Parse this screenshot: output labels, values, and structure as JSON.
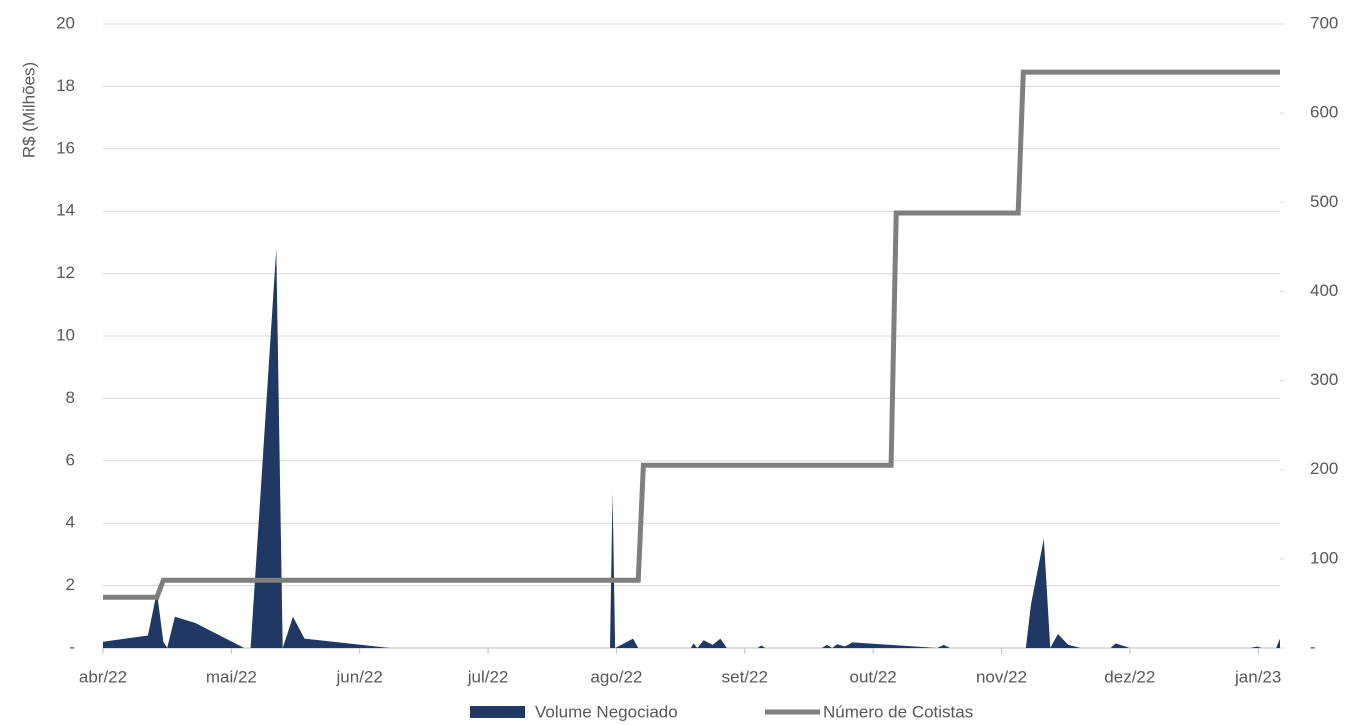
{
  "chart_data": {
    "type": "area-line",
    "y_label": "R$ (Milhões)",
    "xlim": [
      0,
      9.17
    ],
    "xticks": [
      {
        "value": 0,
        "label": "abr/22"
      },
      {
        "value": 1,
        "label": "mai/22"
      },
      {
        "value": 2,
        "label": "jun/22"
      },
      {
        "value": 3,
        "label": "jul/22"
      },
      {
        "value": 4,
        "label": "ago/22"
      },
      {
        "value": 5,
        "label": "set/22"
      },
      {
        "value": 6,
        "label": "out/22"
      },
      {
        "value": 7,
        "label": "nov/22"
      },
      {
        "value": 8,
        "label": "dez/22"
      },
      {
        "value": 9,
        "label": "jan/23"
      }
    ],
    "ylim": [
      0,
      20
    ],
    "yticks": [
      {
        "value": 0,
        "label": "-"
      },
      2,
      4,
      6,
      8,
      10,
      12,
      14,
      16,
      18,
      20
    ],
    "y2lim": [
      0,
      700
    ],
    "y2ticks": [
      {
        "value": 0,
        "label": "-"
      },
      100,
      200,
      300,
      400,
      500,
      600,
      700
    ],
    "grid": true,
    "legend": "bottom",
    "series": [
      {
        "name": "Volume Negociado",
        "color": "#1f3864",
        "kind": "area",
        "x": [
          0,
          0.35,
          0.42,
          0.47,
          0.5,
          0.56,
          0.72,
          1.1,
          1.15,
          1.35,
          1.4,
          1.48,
          1.57,
          2.24,
          3.95,
          3.97,
          3.99,
          4.13,
          4.17,
          4.58,
          4.6,
          4.63,
          4.68,
          4.75,
          4.81,
          4.86,
          5.1,
          5.13,
          5.16,
          5.6,
          5.64,
          5.68,
          5.72,
          5.78,
          5.84,
          6.5,
          6.55,
          6.6,
          7.19,
          7.23,
          7.33,
          7.38,
          7.44,
          7.52,
          7.62,
          7.85,
          7.89,
          8.0,
          8.94,
          8.99,
          9.03,
          9.14,
          9.17
        ],
        "values": [
          0.2,
          0.4,
          1.8,
          0.2,
          0,
          1.0,
          0.8,
          0,
          0,
          12.8,
          0,
          1.0,
          0.3,
          0,
          0,
          5.0,
          0,
          0.3,
          0,
          0,
          0.15,
          0,
          0.25,
          0.1,
          0.3,
          0,
          0,
          0.08,
          0,
          0,
          0.1,
          0,
          0.12,
          0.05,
          0.18,
          0,
          0.1,
          0,
          0,
          1.4,
          3.5,
          0,
          0.45,
          0.1,
          0,
          0,
          0.15,
          0,
          0,
          0.05,
          0,
          0,
          0.3
        ]
      },
      {
        "name": "Número de Cotistas",
        "color": "#7f7f7f",
        "kind": "step",
        "axis": "y2",
        "x": [
          0,
          0.42,
          0.47,
          4.17,
          4.21,
          6.14,
          6.18,
          7.13,
          7.17,
          9.17
        ],
        "values": [
          57,
          57,
          76,
          76,
          205,
          205,
          488,
          488,
          646,
          646
        ]
      }
    ]
  }
}
